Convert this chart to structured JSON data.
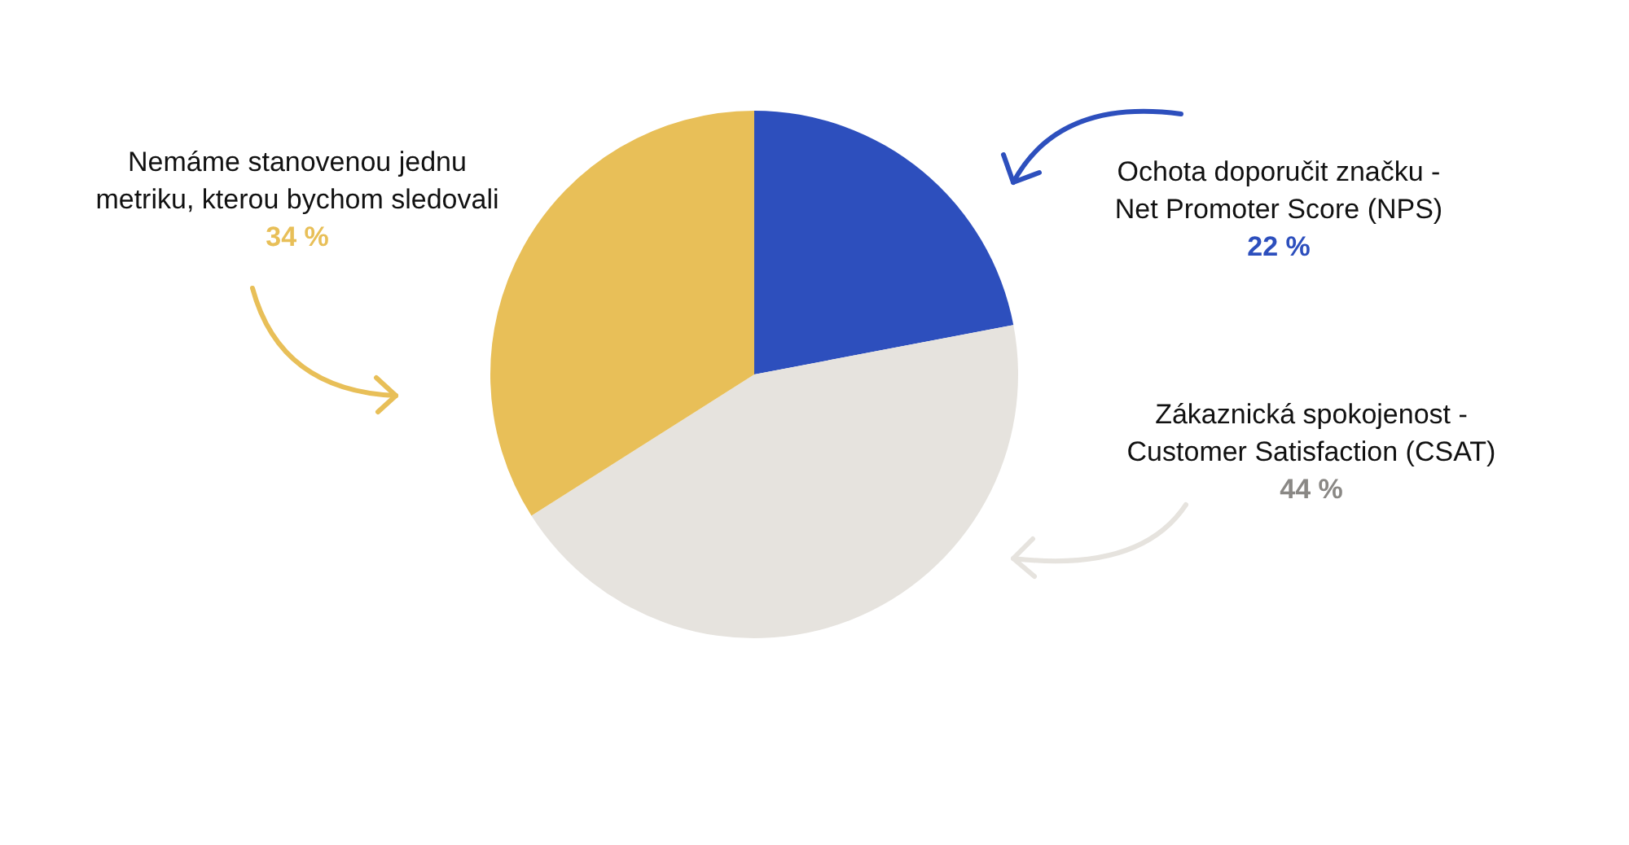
{
  "chart_data": {
    "type": "pie",
    "categories": [
      "Ochota doporučit značku - Net Promoter Score (NPS)",
      "Zákaznická spokojenost - Customer Satisfaction (CSAT)",
      "Nemáme stanovenou jednu metriku, kterou bychom sledovali"
    ],
    "values": [
      22,
      44,
      34
    ],
    "value_labels": [
      "22 %",
      "44 %",
      "34 %"
    ],
    "colors": [
      "#2d4fbd",
      "#e6e3de",
      "#e8bf58"
    ]
  }
}
